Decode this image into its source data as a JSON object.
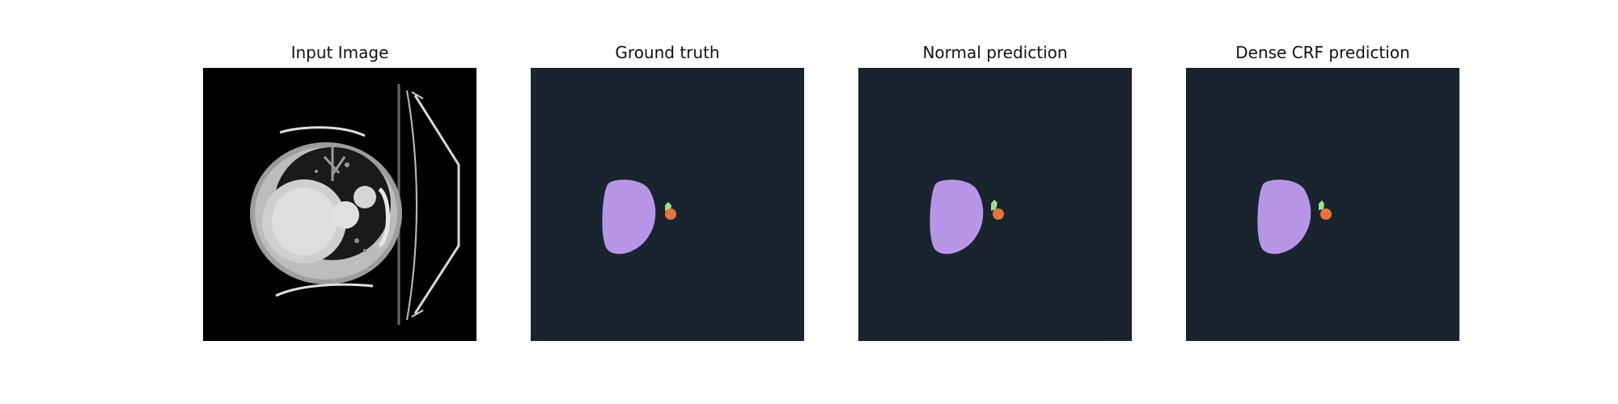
{
  "figure": {
    "panels": [
      {
        "title": "Input Image",
        "kind": "ct-slice"
      },
      {
        "title": "Ground truth",
        "kind": "segmentation"
      },
      {
        "title": "Normal prediction",
        "kind": "segmentation"
      },
      {
        "title": "Dense CRF prediction",
        "kind": "segmentation"
      }
    ]
  },
  "colors": {
    "seg_background": "#19242f",
    "class_heart": "#b796e8",
    "class_small": "#e2753f",
    "class_thin": "#9ee08e",
    "ct_background": "#000000"
  }
}
